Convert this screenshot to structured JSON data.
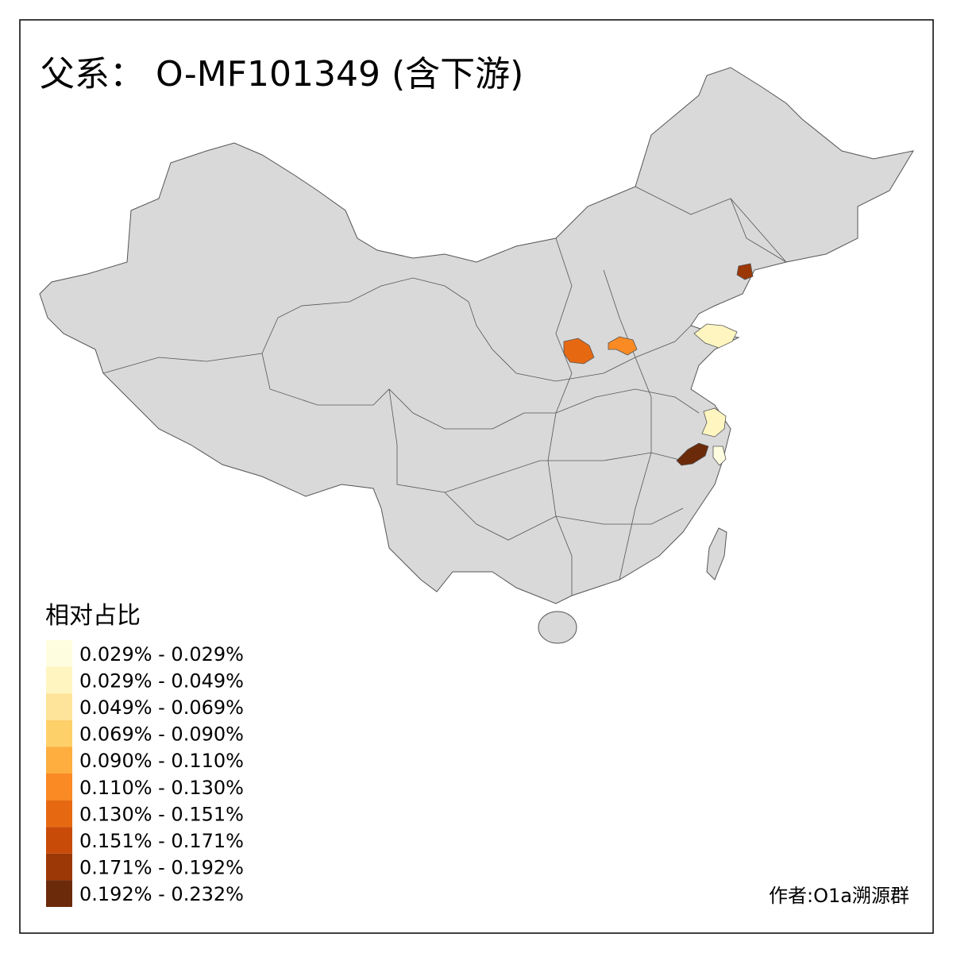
{
  "title": "父系： O-MF101349 (含下游)",
  "legend": {
    "title": "相对占比",
    "items": [
      {
        "label": "0.029% - 0.029%",
        "color": "#fffde0"
      },
      {
        "label": "0.029% - 0.049%",
        "color": "#fff5c0"
      },
      {
        "label": "0.049% - 0.069%",
        "color": "#fee49a"
      },
      {
        "label": "0.069% - 0.090%",
        "color": "#fed06a"
      },
      {
        "label": "0.090% - 0.110%",
        "color": "#fdae3f"
      },
      {
        "label": "0.110% - 0.130%",
        "color": "#f98a24"
      },
      {
        "label": "0.130% - 0.151%",
        "color": "#e66912"
      },
      {
        "label": "0.151% - 0.171%",
        "color": "#c84b08"
      },
      {
        "label": "0.171% - 0.192%",
        "color": "#9c3706"
      },
      {
        "label": "0.192% - 0.232%",
        "color": "#6b2a0a"
      }
    ]
  },
  "credit": "作者:O1a溯源群"
}
